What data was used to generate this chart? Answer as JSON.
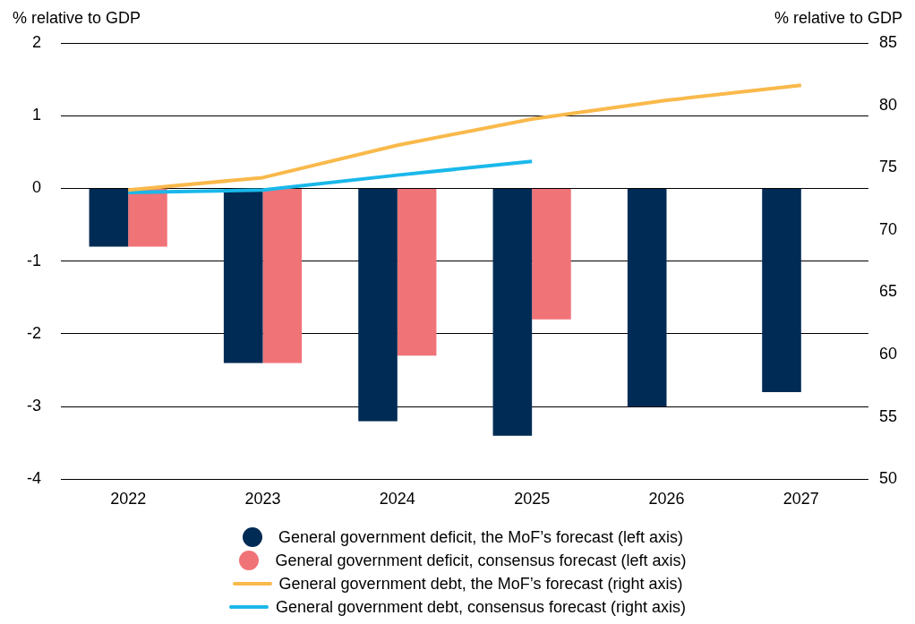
{
  "chart_data": {
    "type": "bar",
    "ylabel": "% relative to GDP",
    "y2label": "% relative to GDP",
    "categories": [
      "2022",
      "2023",
      "2024",
      "2025",
      "2026",
      "2027"
    ],
    "series": [
      {
        "name": "General government deficit, the MoF’s forecast (left axis)",
        "color": "#002b55",
        "values": [
          -0.8,
          -2.4,
          -3.2,
          -3.4,
          -3.0,
          -2.8
        ]
      },
      {
        "name": "General government deficit, consensus forecast (left axis)",
        "color": "#f07378",
        "values": [
          -0.8,
          -2.4,
          -2.3,
          -1.8,
          null,
          null
        ]
      },
      {
        "name": "General government debt, the MoF’s forecast (right axis)",
        "type": "line",
        "axis": "y2",
        "color": "#f9b94b",
        "values": [
          73.2,
          74.2,
          76.8,
          78.9,
          80.4,
          81.6
        ]
      },
      {
        "name": "General government debt, consensus forecast (right axis)",
        "type": "line",
        "axis": "y2",
        "color": "#1ab8ea",
        "values": [
          73.0,
          73.2,
          74.4,
          75.5,
          null,
          null
        ]
      }
    ],
    "ylim": [
      -4,
      2
    ],
    "yticks": [
      -4,
      -3,
      -2,
      -1,
      0,
      1,
      2
    ],
    "y2lim": [
      50,
      85
    ],
    "y2ticks": [
      50,
      55,
      60,
      65,
      70,
      75,
      80,
      85
    ],
    "grid": "y",
    "legend": "bottom"
  }
}
